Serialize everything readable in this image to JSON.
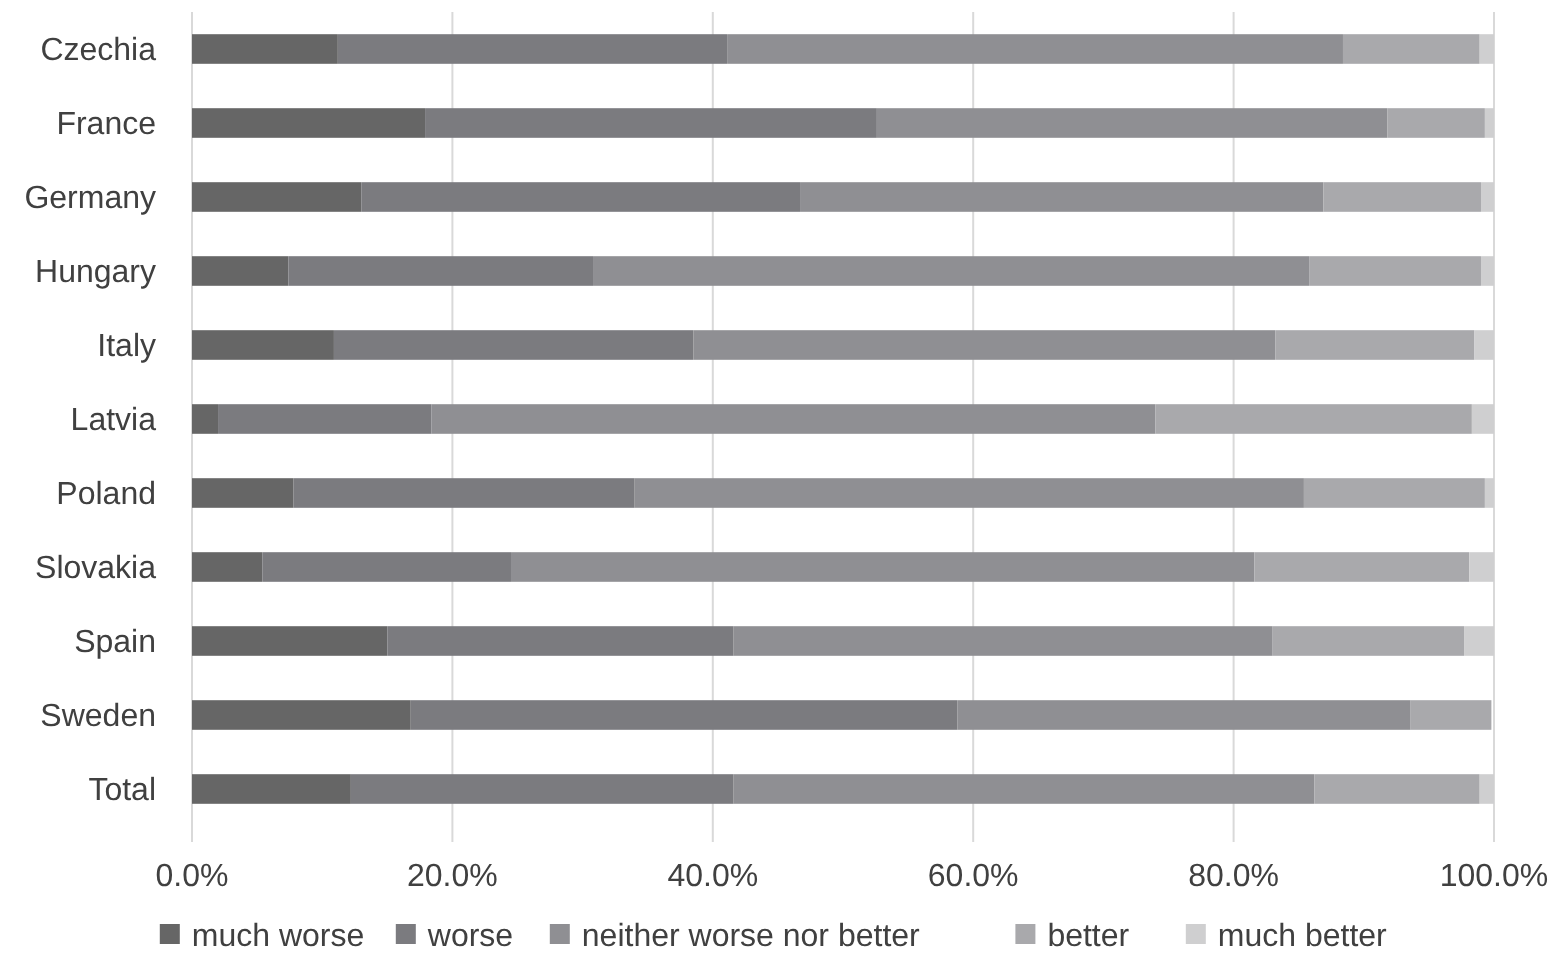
{
  "chart_data": {
    "type": "bar",
    "orientation": "horizontal",
    "stacked": true,
    "categories": [
      "Czechia",
      "France",
      "Germany",
      "Hungary",
      "Italy",
      "Latvia",
      "Poland",
      "Slovakia",
      "Spain",
      "Sweden",
      "Total"
    ],
    "series": [
      {
        "name": "much worse",
        "color": "#666666",
        "values": [
          11.2,
          17.9,
          13.0,
          7.4,
          10.9,
          2.0,
          7.8,
          5.4,
          15.0,
          16.8,
          12.2
        ]
      },
      {
        "name": "worse",
        "color": "#7b7b7f",
        "values": [
          29.9,
          34.7,
          33.7,
          23.4,
          27.6,
          16.4,
          26.2,
          19.1,
          26.6,
          42.0,
          29.4
        ]
      },
      {
        "name": "neither worse nor better",
        "color": "#8f8f93",
        "values": [
          47.3,
          39.2,
          40.2,
          55.0,
          44.7,
          55.6,
          51.4,
          57.1,
          41.4,
          34.8,
          44.6
        ]
      },
      {
        "name": "better",
        "color": "#a9a9ac",
        "values": [
          10.5,
          7.5,
          12.1,
          13.2,
          15.3,
          24.3,
          13.9,
          16.5,
          14.7,
          6.2,
          12.7
        ]
      },
      {
        "name": "much better",
        "color": "#cfcfd0",
        "values": [
          1.1,
          0.7,
          1.0,
          1.0,
          1.5,
          1.7,
          0.7,
          1.9,
          2.3,
          null,
          1.1
        ]
      }
    ],
    "xlim": [
      0,
      100
    ],
    "xticks": [
      {
        "value": 0,
        "label": "0.0%"
      },
      {
        "value": 20,
        "label": "20.0%"
      },
      {
        "value": 40,
        "label": "40.0%"
      },
      {
        "value": 60,
        "label": "60.0%"
      },
      {
        "value": 80,
        "label": "80.0%"
      },
      {
        "value": 100,
        "label": "100.0%"
      }
    ],
    "grid": "x",
    "legend": "bottom"
  }
}
